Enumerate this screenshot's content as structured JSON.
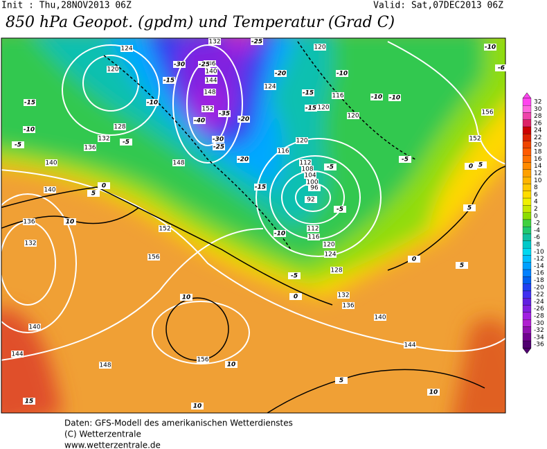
{
  "header": {
    "init": "Init : Thu,28NOV2013 06Z",
    "valid": "Valid: Sat,07DEC2013 06Z",
    "title": "850 hPa Geopot. (gpdm) und Temperatur (Grad C)"
  },
  "colorbar": {
    "levels": [
      "32",
      "30",
      "28",
      "26",
      "24",
      "22",
      "20",
      "18",
      "16",
      "14",
      "12",
      "10",
      "8",
      "6",
      "4",
      "2",
      "0",
      "-2",
      "-4",
      "-6",
      "-8",
      "-10",
      "-12",
      "-14",
      "-16",
      "-18",
      "-20",
      "-22",
      "-24",
      "-26",
      "-28",
      "-30",
      "-32",
      "-34",
      "-36"
    ],
    "colors": [
      "#ff44ee",
      "#ff66dd",
      "#ee44aa",
      "#dd2266",
      "#cc0000",
      "#dd2200",
      "#ee4400",
      "#ff5a00",
      "#ff7000",
      "#ff8a00",
      "#ffa000",
      "#ffb400",
      "#ffc800",
      "#ffdc00",
      "#f0f000",
      "#c8e800",
      "#8cdc00",
      "#40d040",
      "#20c870",
      "#10c0a0",
      "#00c8c8",
      "#00d8f0",
      "#00c0ff",
      "#00a0ff",
      "#0080ff",
      "#0060f0",
      "#2040f0",
      "#4030f0",
      "#6020e0",
      "#8020e0",
      "#a020e0",
      "#b020d0",
      "#9010b0",
      "#700090",
      "#500070"
    ]
  },
  "contour_labels": {
    "geopotential": [
      "124",
      "120",
      "128",
      "132",
      "136",
      "140",
      "140",
      "136",
      "132",
      "140",
      "144",
      "148",
      "152",
      "156",
      "156",
      "132",
      "136",
      "140",
      "144",
      "148",
      "152",
      "124",
      "120",
      "116",
      "120",
      "120",
      "120",
      "116",
      "112",
      "108",
      "104",
      "100",
      "96",
      "92",
      "112",
      "116",
      "120",
      "124",
      "128",
      "132",
      "136",
      "140",
      "144",
      "148",
      "152",
      "156"
    ],
    "temperature": [
      "-10",
      "-6",
      "-10",
      "-10",
      "-10",
      "-15",
      "-20",
      "-25",
      "-30",
      "-25",
      "-15",
      "-10",
      "-15",
      "-10",
      "-5",
      "-5",
      "-15",
      "-20",
      "-30",
      "-25",
      "-35",
      "-40",
      "-20",
      "-5",
      "-5",
      "-15",
      "-5",
      "-10",
      "-5",
      "0",
      "5",
      "10",
      "0",
      "5",
      "5",
      "0",
      "5",
      "10",
      "10",
      "15",
      "10",
      "5",
      "10",
      "0"
    ]
  },
  "footer": {
    "line1": "Daten: GFS-Modell des amerikanischen Wetterdienstes",
    "line2": "(C) Wetterzentrale",
    "line3": "www.wetterzentrale.de"
  }
}
